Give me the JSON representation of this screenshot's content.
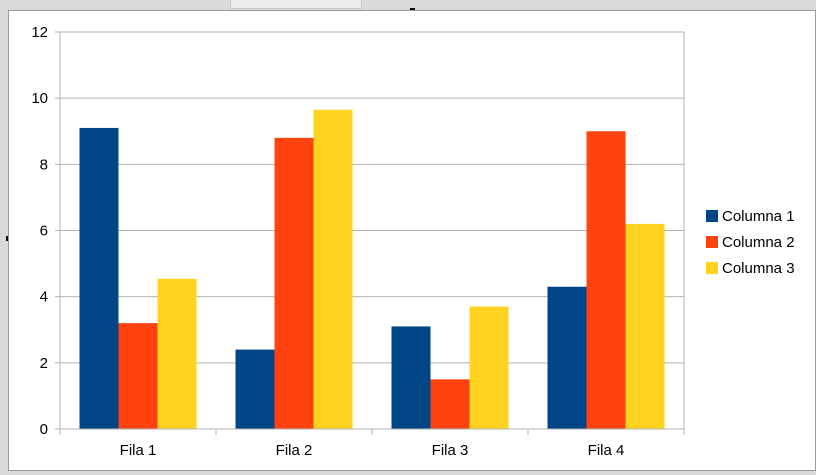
{
  "chart_data": {
    "type": "bar",
    "categories": [
      "Fila 1",
      "Fila 2",
      "Fila 3",
      "Fila 4"
    ],
    "series": [
      {
        "name": "Columna 1",
        "color": "#004586",
        "values": [
          9.1,
          2.4,
          3.1,
          4.3
        ]
      },
      {
        "name": "Columna 2",
        "color": "#FF420E",
        "values": [
          3.2,
          8.8,
          1.5,
          9.0
        ]
      },
      {
        "name": "Columna 3",
        "color": "#FFD320",
        "values": [
          4.54,
          9.65,
          3.7,
          6.2
        ]
      }
    ],
    "title": "",
    "xlabel": "",
    "ylabel": "",
    "ylim": [
      0,
      12
    ],
    "yticks": [
      "0",
      "2",
      "4",
      "6",
      "8",
      "10",
      "12"
    ],
    "grid": true,
    "legend": "right"
  }
}
